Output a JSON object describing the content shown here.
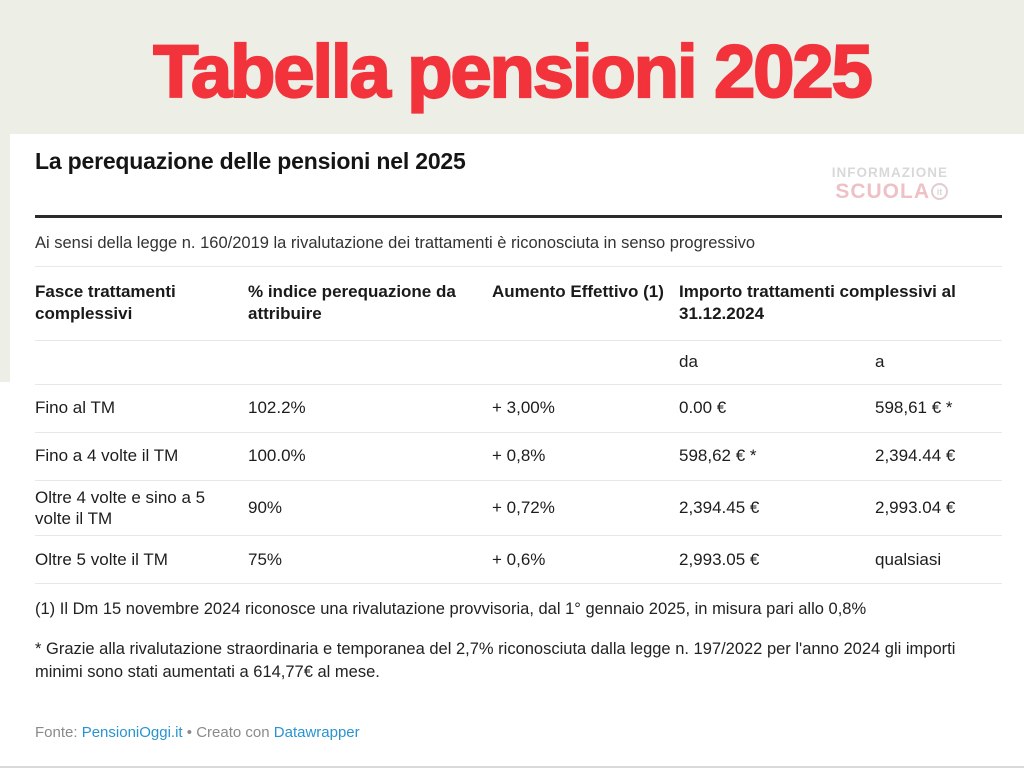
{
  "banner": {
    "title": "Tabella pensioni 2025"
  },
  "watermark": {
    "line1": "INFORMAZIONE",
    "line2": "SCUOLA",
    "badge": "it"
  },
  "card": {
    "heading": "La perequazione delle pensioni nel 2025",
    "intro": "Ai sensi della legge n. 160/2019 la rivalutazione dei trattamenti è riconosciuta in senso progressivo"
  },
  "table": {
    "headers": [
      "Fasce trattamenti complessivi",
      "% indice perequazione da attribuire",
      "Aumento Effettivo (1)",
      "Importo trattamenti complessivi al 31.12.2024"
    ],
    "subheaders": {
      "da": "da",
      "a": "a"
    },
    "rows": [
      [
        "Fino al TM",
        "102.2%",
        "+ 3,00%",
        "0.00 €",
        "598,61 € *"
      ],
      [
        "Fino a 4 volte il TM",
        "100.0%",
        "+ 0,8%",
        "598,62 € *",
        "2,394.44 €"
      ],
      [
        "Oltre 4 volte e sino a 5 volte il TM",
        "90%",
        "+ 0,72%",
        "2,394.45 €",
        "2,993.04 €"
      ],
      [
        "Oltre 5 volte il TM",
        "75%",
        "+ 0,6%",
        "2,993.05 €",
        "qualsiasi"
      ]
    ]
  },
  "footnotes": {
    "fn1": "(1) Il Dm 15 novembre 2024 riconosce una rivalutazione provvisoria, dal 1° gennaio 2025, in misura pari allo 0,8%",
    "fn2": "* Grazie alla rivalutazione straordinaria e temporanea del 2,7% riconosciuta dalla legge n. 197/2022 per l'anno 2024 gli importi minimi sono stati aumentati a 614,77€ al mese."
  },
  "footer": {
    "source_label": "Fonte:",
    "source_link": "PensioniOggi.it",
    "separator": "•",
    "credit_label": "Creato con",
    "credit_link": "Datawrapper"
  },
  "colors": {
    "title_red": "#f2333b",
    "band_background": "#edeee6",
    "link_blue": "#2994d1",
    "hairline": "#e8e8e8",
    "rule_dark": "#2b2b2b"
  },
  "chart_data": {
    "type": "table",
    "title": "La perequazione delle pensioni nel 2025",
    "subtitle": "Ai sensi della legge n. 160/2019 la rivalutazione dei trattamenti è riconosciuta in senso progressivo",
    "columns": [
      "Fasce trattamenti complessivi",
      "% indice perequazione da attribuire",
      "Aumento Effettivo (1)",
      "Importo trattamenti complessivi al 31.12.2024 — da",
      "Importo trattamenti complessivi al 31.12.2024 — a"
    ],
    "rows": [
      [
        "Fino al TM",
        "102.2%",
        "+ 3,00%",
        "0.00 €",
        "598,61 € *"
      ],
      [
        "Fino a 4 volte il TM",
        "100.0%",
        "+ 0,8%",
        "598,62 € *",
        "2,394.44 €"
      ],
      [
        "Oltre 4 volte e sino a 5 volte il TM",
        "90%",
        "+ 0,72%",
        "2,394.45 €",
        "2,993.04 €"
      ],
      [
        "Oltre 5 volte il TM",
        "75%",
        "+ 0,6%",
        "2,993.05 €",
        "qualsiasi"
      ]
    ],
    "notes": [
      "(1) Il Dm 15 novembre 2024 riconosce una rivalutazione provvisoria, dal 1° gennaio 2025, in misura pari allo 0,8%",
      "* Grazie alla rivalutazione straordinaria e temporanea del 2,7% riconosciuta dalla legge n. 197/2022 per l'anno 2024 gli importi minimi sono stati aumentati a 614,77€ al mese."
    ],
    "source": "PensioniOggi.it",
    "created_with": "Datawrapper"
  }
}
